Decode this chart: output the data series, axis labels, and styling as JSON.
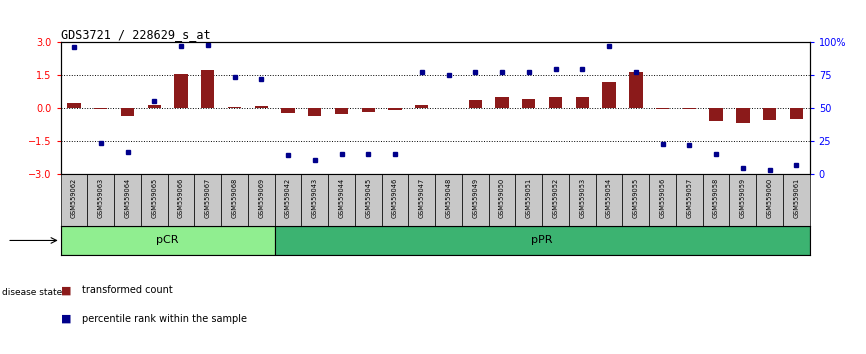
{
  "title": "GDS3721 / 228629_s_at",
  "samples": [
    "GSM559062",
    "GSM559063",
    "GSM559064",
    "GSM559065",
    "GSM559066",
    "GSM559067",
    "GSM559068",
    "GSM559069",
    "GSM559042",
    "GSM559043",
    "GSM559044",
    "GSM559045",
    "GSM559046",
    "GSM559047",
    "GSM559048",
    "GSM559049",
    "GSM559050",
    "GSM559051",
    "GSM559052",
    "GSM559053",
    "GSM559054",
    "GSM559055",
    "GSM559056",
    "GSM559057",
    "GSM559058",
    "GSM559059",
    "GSM559060",
    "GSM559061"
  ],
  "bar_values": [
    0.25,
    -0.05,
    -0.35,
    0.12,
    1.55,
    1.75,
    0.05,
    0.1,
    -0.25,
    -0.35,
    -0.28,
    -0.18,
    -0.08,
    0.15,
    0.02,
    0.35,
    0.5,
    0.42,
    0.52,
    0.5,
    1.2,
    1.65,
    -0.05,
    -0.05,
    -0.6,
    -0.7,
    -0.55,
    -0.5
  ],
  "blue_values": [
    2.8,
    -1.6,
    -2.0,
    0.3,
    2.85,
    2.9,
    1.4,
    1.35,
    -2.15,
    -2.4,
    -2.1,
    -2.1,
    -2.1,
    1.65,
    1.5,
    1.65,
    1.65,
    1.65,
    1.8,
    1.8,
    2.85,
    1.65,
    -1.65,
    -1.7,
    -2.1,
    -2.75,
    -2.85,
    -2.6
  ],
  "pcr_count": 8,
  "ppr_count": 20,
  "bar_color": "#8B1A1A",
  "blue_color": "#00008B",
  "ylim": [
    -3,
    3
  ],
  "yticks_left": [
    -3,
    -1.5,
    0,
    1.5,
    3
  ],
  "right_yticks_pct": [
    0,
    25,
    50,
    75,
    100
  ],
  "dotted_lines": [
    -1.5,
    0,
    1.5
  ],
  "pcr_color": "#90EE90",
  "ppr_color": "#3CB371",
  "label_bg_color": "#C8C8C8",
  "disease_state_label": "disease state"
}
